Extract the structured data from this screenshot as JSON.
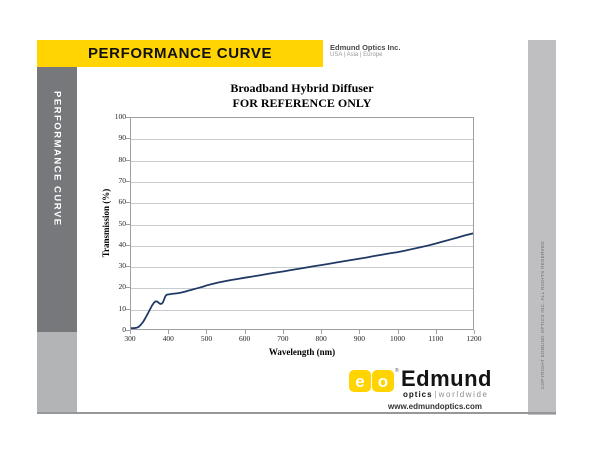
{
  "header": {
    "title": "PERFORMANCE CURVE",
    "company": "Edmund Optics Inc.",
    "regions": "USA | Asia | Europe"
  },
  "sidebar": {
    "label": "PERFORMANCE CURVE"
  },
  "right_bar": {
    "copyright": "COPYRIGHT EDMUND OPTICS INC. ALL RIGHTS RESERVED"
  },
  "chart_data": {
    "type": "line",
    "title": "Broadband Hybrid Diffuser",
    "subtitle": "FOR REFERENCE ONLY",
    "xlabel": "Wavelength (nm)",
    "ylabel": "Transmission (%)",
    "xlim": [
      300,
      1200
    ],
    "ylim": [
      0,
      100
    ],
    "xticks": [
      300,
      400,
      500,
      600,
      700,
      800,
      900,
      1000,
      1100,
      1200
    ],
    "yticks": [
      0,
      10,
      20,
      30,
      40,
      50,
      60,
      70,
      80,
      90,
      100
    ],
    "grid": "horizontal",
    "legend": "none",
    "series": [
      {
        "name": "Transmission",
        "color": "#1f3a64",
        "points": [
          [
            300,
            0.4
          ],
          [
            308,
            0.4
          ],
          [
            315,
            0.6
          ],
          [
            320,
            1.0
          ],
          [
            326,
            2.0
          ],
          [
            332,
            3.4
          ],
          [
            338,
            5.2
          ],
          [
            344,
            7.2
          ],
          [
            350,
            9.3
          ],
          [
            356,
            11.3
          ],
          [
            361,
            12.6
          ],
          [
            365,
            13.1
          ],
          [
            369,
            13.0
          ],
          [
            373,
            12.4
          ],
          [
            377,
            11.9
          ],
          [
            381,
            12.0
          ],
          [
            384,
            12.6
          ],
          [
            387,
            14.0
          ],
          [
            390,
            15.4
          ],
          [
            393,
            16.1
          ],
          [
            397,
            16.4
          ],
          [
            402,
            16.5
          ],
          [
            410,
            16.7
          ],
          [
            420,
            16.9
          ],
          [
            430,
            17.2
          ],
          [
            440,
            17.6
          ],
          [
            450,
            18.1
          ],
          [
            460,
            18.6
          ],
          [
            470,
            19.1
          ],
          [
            480,
            19.6
          ],
          [
            490,
            20.1
          ],
          [
            500,
            20.7
          ],
          [
            515,
            21.4
          ],
          [
            530,
            22.0
          ],
          [
            545,
            22.6
          ],
          [
            560,
            23.1
          ],
          [
            580,
            23.7
          ],
          [
            600,
            24.3
          ],
          [
            620,
            24.9
          ],
          [
            640,
            25.5
          ],
          [
            660,
            26.1
          ],
          [
            680,
            26.7
          ],
          [
            700,
            27.3
          ],
          [
            720,
            27.9
          ],
          [
            740,
            28.5
          ],
          [
            760,
            29.1
          ],
          [
            780,
            29.7
          ],
          [
            800,
            30.3
          ],
          [
            820,
            30.9
          ],
          [
            840,
            31.5
          ],
          [
            860,
            32.1
          ],
          [
            880,
            32.7
          ],
          [
            900,
            33.3
          ],
          [
            920,
            33.9
          ],
          [
            940,
            34.6
          ],
          [
            960,
            35.2
          ],
          [
            980,
            35.8
          ],
          [
            1000,
            36.4
          ],
          [
            1020,
            37.1
          ],
          [
            1040,
            37.9
          ],
          [
            1060,
            38.7
          ],
          [
            1080,
            39.5
          ],
          [
            1100,
            40.4
          ],
          [
            1120,
            41.4
          ],
          [
            1140,
            42.4
          ],
          [
            1160,
            43.4
          ],
          [
            1180,
            44.4
          ],
          [
            1200,
            45.3
          ]
        ]
      }
    ]
  },
  "footer": {
    "logo_letter_e": "e",
    "logo_letter_o": "o",
    "reg_mark": "®",
    "brand": "Edmund",
    "sub_optics": "optics",
    "sub_sep": "|",
    "sub_worldwide": "worldwide",
    "url": "www.edmundoptics.com"
  },
  "colors": {
    "accent_yellow": "#ffd400",
    "sidebar_dark": "#77787b",
    "sidebar_light": "#b2b4b6",
    "right_bar": "#bfbfc1",
    "curve": "#1f3a64",
    "gridline": "#c9ccce",
    "frame": "#9aa0a4"
  }
}
